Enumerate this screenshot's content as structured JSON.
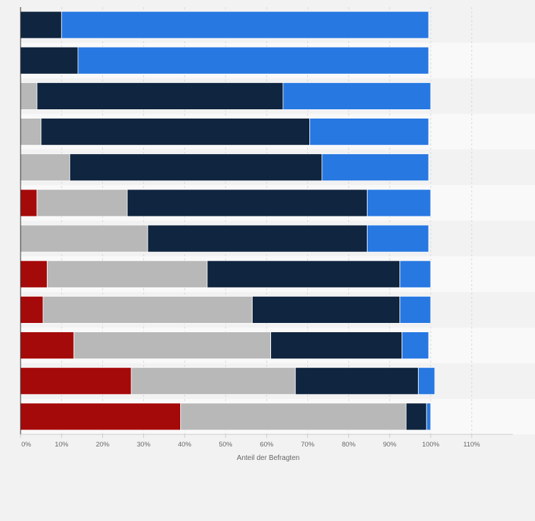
{
  "chart_data": {
    "type": "bar",
    "orientation": "horizontal",
    "stacked": true,
    "xlabel": "Anteil der Befragten",
    "xlim": [
      0,
      120
    ],
    "xticks": [
      0,
      10,
      20,
      30,
      40,
      50,
      60,
      70,
      80,
      90,
      100,
      110
    ],
    "tick_labels": [
      "0%",
      "10%",
      "20%",
      "30%",
      "40%",
      "50%",
      "60%",
      "70%",
      "80%",
      "90%",
      "100%",
      "110%"
    ],
    "grid": true,
    "legend": "none",
    "series": [
      {
        "color": "#a50a0a",
        "values": [
          0,
          0,
          0,
          0,
          0,
          4,
          0,
          6.5,
          5.5,
          13,
          27,
          39
        ]
      },
      {
        "color": "#b8b8b8",
        "values": [
          0,
          0,
          4,
          5,
          12,
          22,
          31,
          39,
          51,
          48,
          40,
          55
        ]
      },
      {
        "color": "#10253f",
        "values": [
          10,
          14,
          60,
          65.5,
          61.5,
          58.5,
          53.5,
          47,
          36,
          32,
          30,
          5
        ]
      },
      {
        "color": "#2878e1",
        "values": [
          89.5,
          85.5,
          36,
          29,
          26,
          15.5,
          15,
          7.5,
          7.5,
          6.5,
          4,
          1
        ]
      }
    ]
  }
}
